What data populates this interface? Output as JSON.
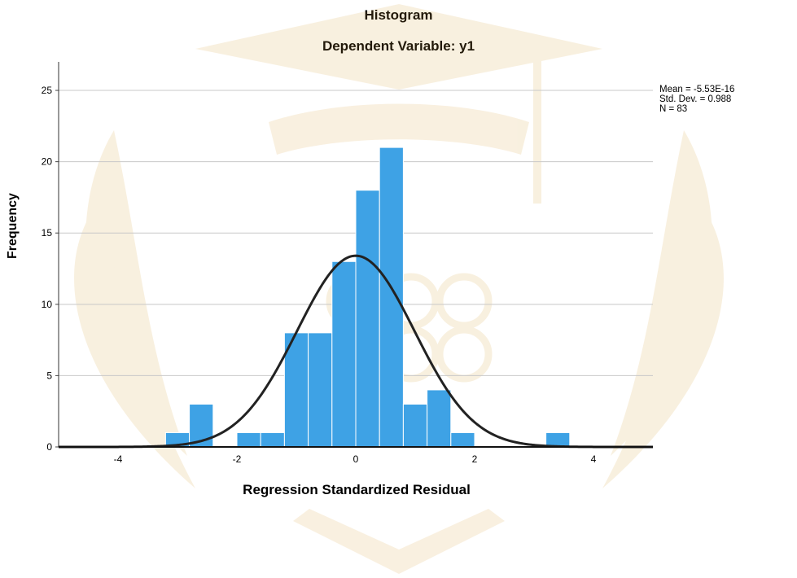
{
  "chart_data": {
    "type": "bar",
    "title": "Histogram",
    "subtitle": "Dependent Variable: y1",
    "xlabel": "Regression Standardized Residual",
    "ylabel": "Frequency",
    "xlim": [
      -5,
      5
    ],
    "ylim": [
      0,
      27
    ],
    "xticks": [
      -4,
      -2,
      0,
      2,
      4
    ],
    "yticks": [
      0,
      5,
      10,
      15,
      20,
      25
    ],
    "grid": "horizontal",
    "bin_width": 0.4,
    "bins": [
      {
        "x0": -3.2,
        "x1": -2.8,
        "count": 1
      },
      {
        "x0": -2.8,
        "x1": -2.4,
        "count": 3
      },
      {
        "x0": -2.0,
        "x1": -1.6,
        "count": 1
      },
      {
        "x0": -1.6,
        "x1": -1.2,
        "count": 1
      },
      {
        "x0": -1.2,
        "x1": -0.8,
        "count": 8
      },
      {
        "x0": -0.8,
        "x1": -0.4,
        "count": 8
      },
      {
        "x0": -0.4,
        "x1": 0.0,
        "count": 13
      },
      {
        "x0": 0.0,
        "x1": 0.4,
        "count": 18
      },
      {
        "x0": 0.4,
        "x1": 0.8,
        "count": 21
      },
      {
        "x0": 0.8,
        "x1": 1.2,
        "count": 3
      },
      {
        "x0": 1.2,
        "x1": 1.6,
        "count": 4
      },
      {
        "x0": 1.6,
        "x1": 2.0,
        "count": 1
      },
      {
        "x0": 3.2,
        "x1": 3.6,
        "count": 1
      }
    ],
    "normal_curve": {
      "mean": -5.53e-16,
      "std": 0.988,
      "n": 83
    },
    "stats": [
      "Mean = -5.53E-16",
      "Std. Dev. = 0.988",
      "N = 83"
    ],
    "colors": {
      "bar": "#3ea2e5",
      "bar_edge": "#ffffff",
      "curve": "#222222",
      "grid": "#c8c8c8"
    }
  }
}
